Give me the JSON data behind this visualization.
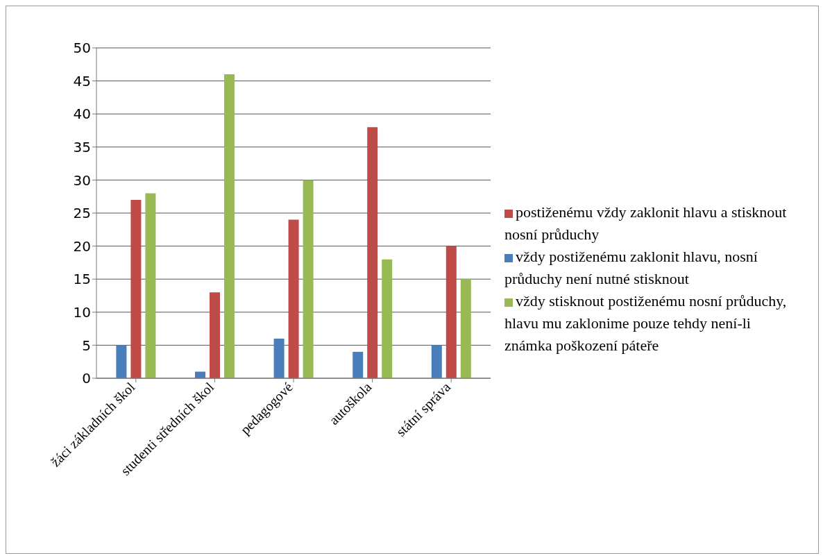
{
  "chart_data": {
    "type": "bar",
    "categories": [
      "žáci základních škol",
      "studenti středních škol",
      "pedagogové",
      "autoškola",
      "státní správa"
    ],
    "series": [
      {
        "name": "vždy postiženému zaklonit hlavu, nosní průduchy není nutné stisknout",
        "color": "#4a7ebb",
        "values": [
          5,
          1,
          6,
          4,
          5
        ]
      },
      {
        "name": "postiženému vždy zaklonit hlavu a stisknout nosní průduchy",
        "color": "#be4b48",
        "values": [
          27,
          13,
          24,
          38,
          20
        ]
      },
      {
        "name": "vždy stisknout postiženému nosní průduchy, hlavu mu zaklonime pouze tehdy není-li známka poškození páteře",
        "color": "#98b954",
        "values": [
          28,
          46,
          30,
          18,
          15
        ]
      }
    ],
    "ylim": [
      0,
      50
    ],
    "yticks": [
      0,
      5,
      10,
      15,
      20,
      25,
      30,
      35,
      40,
      45,
      50
    ],
    "grid": "y",
    "legend": "right"
  }
}
